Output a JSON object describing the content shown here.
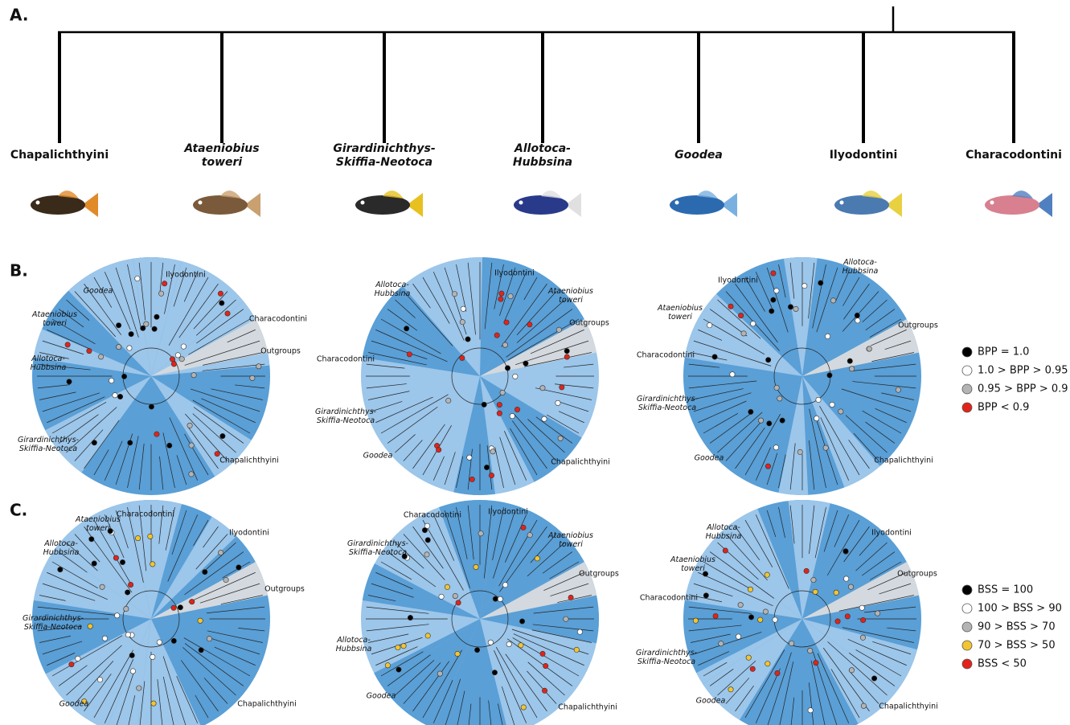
{
  "panel_a": {
    "label": "A.",
    "taxa": [
      {
        "lines": [
          "Chapalichthyini"
        ],
        "italic": false
      },
      {
        "lines": [
          "Ataeniobius",
          "toweri"
        ],
        "italic": true
      },
      {
        "lines": [
          "Girardinichthys-",
          "Skiffia-Neotoca"
        ],
        "italic": true
      },
      {
        "lines": [
          "Allotoca-",
          "Hubbsina"
        ],
        "italic": true
      },
      {
        "lines": [
          "Goodea"
        ],
        "italic": true
      },
      {
        "lines": [
          "Ilyodontini"
        ],
        "italic": false
      },
      {
        "lines": [
          "Characodontini"
        ],
        "italic": false
      }
    ]
  },
  "panel_b": {
    "label": "B.",
    "trees": [
      {
        "labels": [
          {
            "lines": [
              "Ilyodontini"
            ],
            "italic": false
          },
          {
            "lines": [
              "Goodea"
            ],
            "italic": true
          },
          {
            "lines": [
              "Ataeniobius",
              "toweri"
            ],
            "italic": true
          },
          {
            "lines": [
              "Characodontini"
            ],
            "italic": false
          },
          {
            "lines": [
              "Outgroups"
            ],
            "italic": false
          },
          {
            "lines": [
              "Allotoca-",
              "Hubbsina"
            ],
            "italic": true
          },
          {
            "lines": [
              "Girardinichthys-",
              "Skiffia-Neotoca"
            ],
            "italic": true
          },
          {
            "lines": [
              "Chapalichthyini"
            ],
            "italic": false
          }
        ]
      },
      {
        "labels": [
          {
            "lines": [
              "Ilyodontini"
            ],
            "italic": false
          },
          {
            "lines": [
              "Allotoca-",
              "Hubbsina"
            ],
            "italic": true
          },
          {
            "lines": [
              "Ataeniobius",
              "toweri"
            ],
            "italic": true
          },
          {
            "lines": [
              "Outgroups"
            ],
            "italic": false
          },
          {
            "lines": [
              "Characodontini"
            ],
            "italic": false
          },
          {
            "lines": [
              "Girardinichthys-",
              "Skiffia-Neotoca"
            ],
            "italic": true
          },
          {
            "lines": [
              "Goodea"
            ],
            "italic": true
          },
          {
            "lines": [
              "Chapalichthyini"
            ],
            "italic": false
          }
        ]
      },
      {
        "labels": [
          {
            "lines": [
              "Allotoca-",
              "Hubbsina"
            ],
            "italic": true
          },
          {
            "lines": [
              "Ilyodontini"
            ],
            "italic": false
          },
          {
            "lines": [
              "Ataeniobius",
              "toweri"
            ],
            "italic": true
          },
          {
            "lines": [
              "Outgroups"
            ],
            "italic": false
          },
          {
            "lines": [
              "Characodontini"
            ],
            "italic": false
          },
          {
            "lines": [
              "Girardinichthys-",
              "Skiffia-Neotoca"
            ],
            "italic": true
          },
          {
            "lines": [
              "Goodea"
            ],
            "italic": true
          },
          {
            "lines": [
              "Chapalichthyini"
            ],
            "italic": false
          }
        ]
      }
    ],
    "legend": [
      {
        "label": "BPP = 1.0",
        "color": "#000000"
      },
      {
        "label": "1.0 > BPP > 0.95",
        "color": "#ffffff"
      },
      {
        "label": "0.95 > BPP > 0.9",
        "color": "#b4b4b4"
      },
      {
        "label": "BPP < 0.9",
        "color": "#e2231a"
      }
    ]
  },
  "panel_c": {
    "label": "C.",
    "trees": [
      {
        "labels": [
          {
            "lines": [
              "Characodontini"
            ],
            "italic": false
          },
          {
            "lines": [
              "Ataeniobius",
              "toweri"
            ],
            "italic": true
          },
          {
            "lines": [
              "Ilyodontini"
            ],
            "italic": false
          },
          {
            "lines": [
              "Allotoca-",
              "Hubbsina"
            ],
            "italic": true
          },
          {
            "lines": [
              "Outgroups"
            ],
            "italic": false
          },
          {
            "lines": [
              "Girardinichthys-",
              "Skiffia-Neotoca"
            ],
            "italic": true
          },
          {
            "lines": [
              "Goodea"
            ],
            "italic": true
          },
          {
            "lines": [
              "Chapalichthyini"
            ],
            "italic": false
          }
        ]
      },
      {
        "labels": [
          {
            "lines": [
              "Characodontini"
            ],
            "italic": false
          },
          {
            "lines": [
              "Ilyodontini"
            ],
            "italic": false
          },
          {
            "lines": [
              "Girardinichthys-",
              "Skiffia-Neotoca"
            ],
            "italic": true
          },
          {
            "lines": [
              "Ataeniobius",
              "toweri"
            ],
            "italic": true
          },
          {
            "lines": [
              "Outgroups"
            ],
            "italic": false
          },
          {
            "lines": [
              "Allotoca-",
              "Hubbsina"
            ],
            "italic": true
          },
          {
            "lines": [
              "Goodea"
            ],
            "italic": true
          },
          {
            "lines": [
              "Chapalichthyini"
            ],
            "italic": false
          }
        ]
      },
      {
        "labels": [
          {
            "lines": [
              "Ilyodontini"
            ],
            "italic": false
          },
          {
            "lines": [
              "Allotoca-",
              "Hubbsina"
            ],
            "italic": true
          },
          {
            "lines": [
              "Ataeniobius",
              "toweri"
            ],
            "italic": true
          },
          {
            "lines": [
              "Outgroups"
            ],
            "italic": false
          },
          {
            "lines": [
              "Characodontini"
            ],
            "italic": false
          },
          {
            "lines": [
              "Girardinichthys-",
              "Skiffia-Neotoca"
            ],
            "italic": true
          },
          {
            "lines": [
              "Goodea"
            ],
            "italic": true
          },
          {
            "lines": [
              "Chapalichthyini"
            ],
            "italic": false
          }
        ]
      }
    ],
    "legend": [
      {
        "label": "BSS = 100",
        "color": "#000000"
      },
      {
        "label": "100 > BSS > 90",
        "color": "#ffffff"
      },
      {
        "label": "90 > BSS > 70",
        "color": "#b4b4b4"
      },
      {
        "label": "70 > BSS > 50",
        "color": "#f2c531"
      },
      {
        "label": "BSS < 50",
        "color": "#e2231a"
      }
    ]
  }
}
